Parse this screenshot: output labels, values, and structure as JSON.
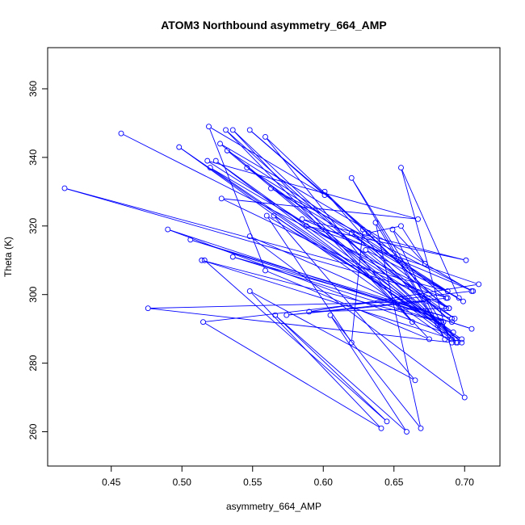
{
  "chart_data": {
    "type": "line",
    "title": "ATOM3 Northbound asymmetry_664_AMP",
    "xlabel": "asymmetry_664_AMP",
    "ylabel": "Theta (K)",
    "xlim": [
      0.405,
      0.725
    ],
    "ylim": [
      250,
      372
    ],
    "x_ticks": [
      0.45,
      0.5,
      0.55,
      0.6,
      0.65,
      0.7
    ],
    "x_tick_labels": [
      "0.45",
      "0.50",
      "0.55",
      "0.60",
      "0.65",
      "0.70"
    ],
    "y_ticks": [
      260,
      280,
      300,
      320,
      340,
      360
    ],
    "y_tick_labels": [
      "260",
      "280",
      "300",
      "320",
      "340",
      "360"
    ],
    "grid": false,
    "series": [
      {
        "color": "#0000ff",
        "marker": "open-circle",
        "x": [
          0.457,
          0.687,
          0.548,
          0.601,
          0.519,
          0.559,
          0.675,
          0.536,
          0.695,
          0.532,
          0.688,
          0.417,
          0.688,
          0.574,
          0.674,
          0.476,
          0.691,
          0.498,
          0.681,
          0.62,
          0.691,
          0.514,
          0.683,
          0.536,
          0.691,
          0.506,
          0.705,
          0.49,
          0.698,
          0.565,
          0.665,
          0.548,
          0.641,
          0.515,
          0.705,
          0.527,
          0.698,
          0.531,
          0.663,
          0.559,
          0.687,
          0.601,
          0.694,
          0.524,
          0.692,
          0.52,
          0.689,
          0.528,
          0.667,
          0.518,
          0.693,
          0.546,
          0.699,
          0.563,
          0.706,
          0.585,
          0.701,
          0.588,
          0.71,
          0.59,
          0.689,
          0.62,
          0.691,
          0.63,
          0.696,
          0.655,
          0.7,
          0.548,
          0.685,
          0.56,
          0.62,
          0.628,
          0.632,
          0.655,
          0.672,
          0.649,
          0.686,
          0.637,
          0.669,
          0.605,
          0.659,
          0.566,
          0.645,
          0.516
        ],
        "y": [
          347,
          299,
          348,
          329,
          349,
          307,
          287,
          348,
          286,
          342,
          301,
          331,
          299,
          294,
          298,
          296,
          286,
          343,
          291,
          334,
          287,
          310,
          292,
          311,
          293,
          316,
          290,
          319,
          287,
          323,
          275,
          301,
          261,
          292,
          301,
          344,
          286,
          348,
          292,
          346,
          296,
          330,
          286,
          339,
          289,
          337,
          296,
          328,
          322,
          339,
          293,
          337,
          298,
          331,
          301,
          322,
          310,
          320,
          303,
          295,
          296,
          318,
          292,
          313,
          299,
          337,
          270,
          317,
          292,
          323,
          286,
          319,
          318,
          320,
          309,
          319,
          287,
          321,
          261,
          294,
          260,
          294,
          263,
          310
        ]
      }
    ]
  }
}
